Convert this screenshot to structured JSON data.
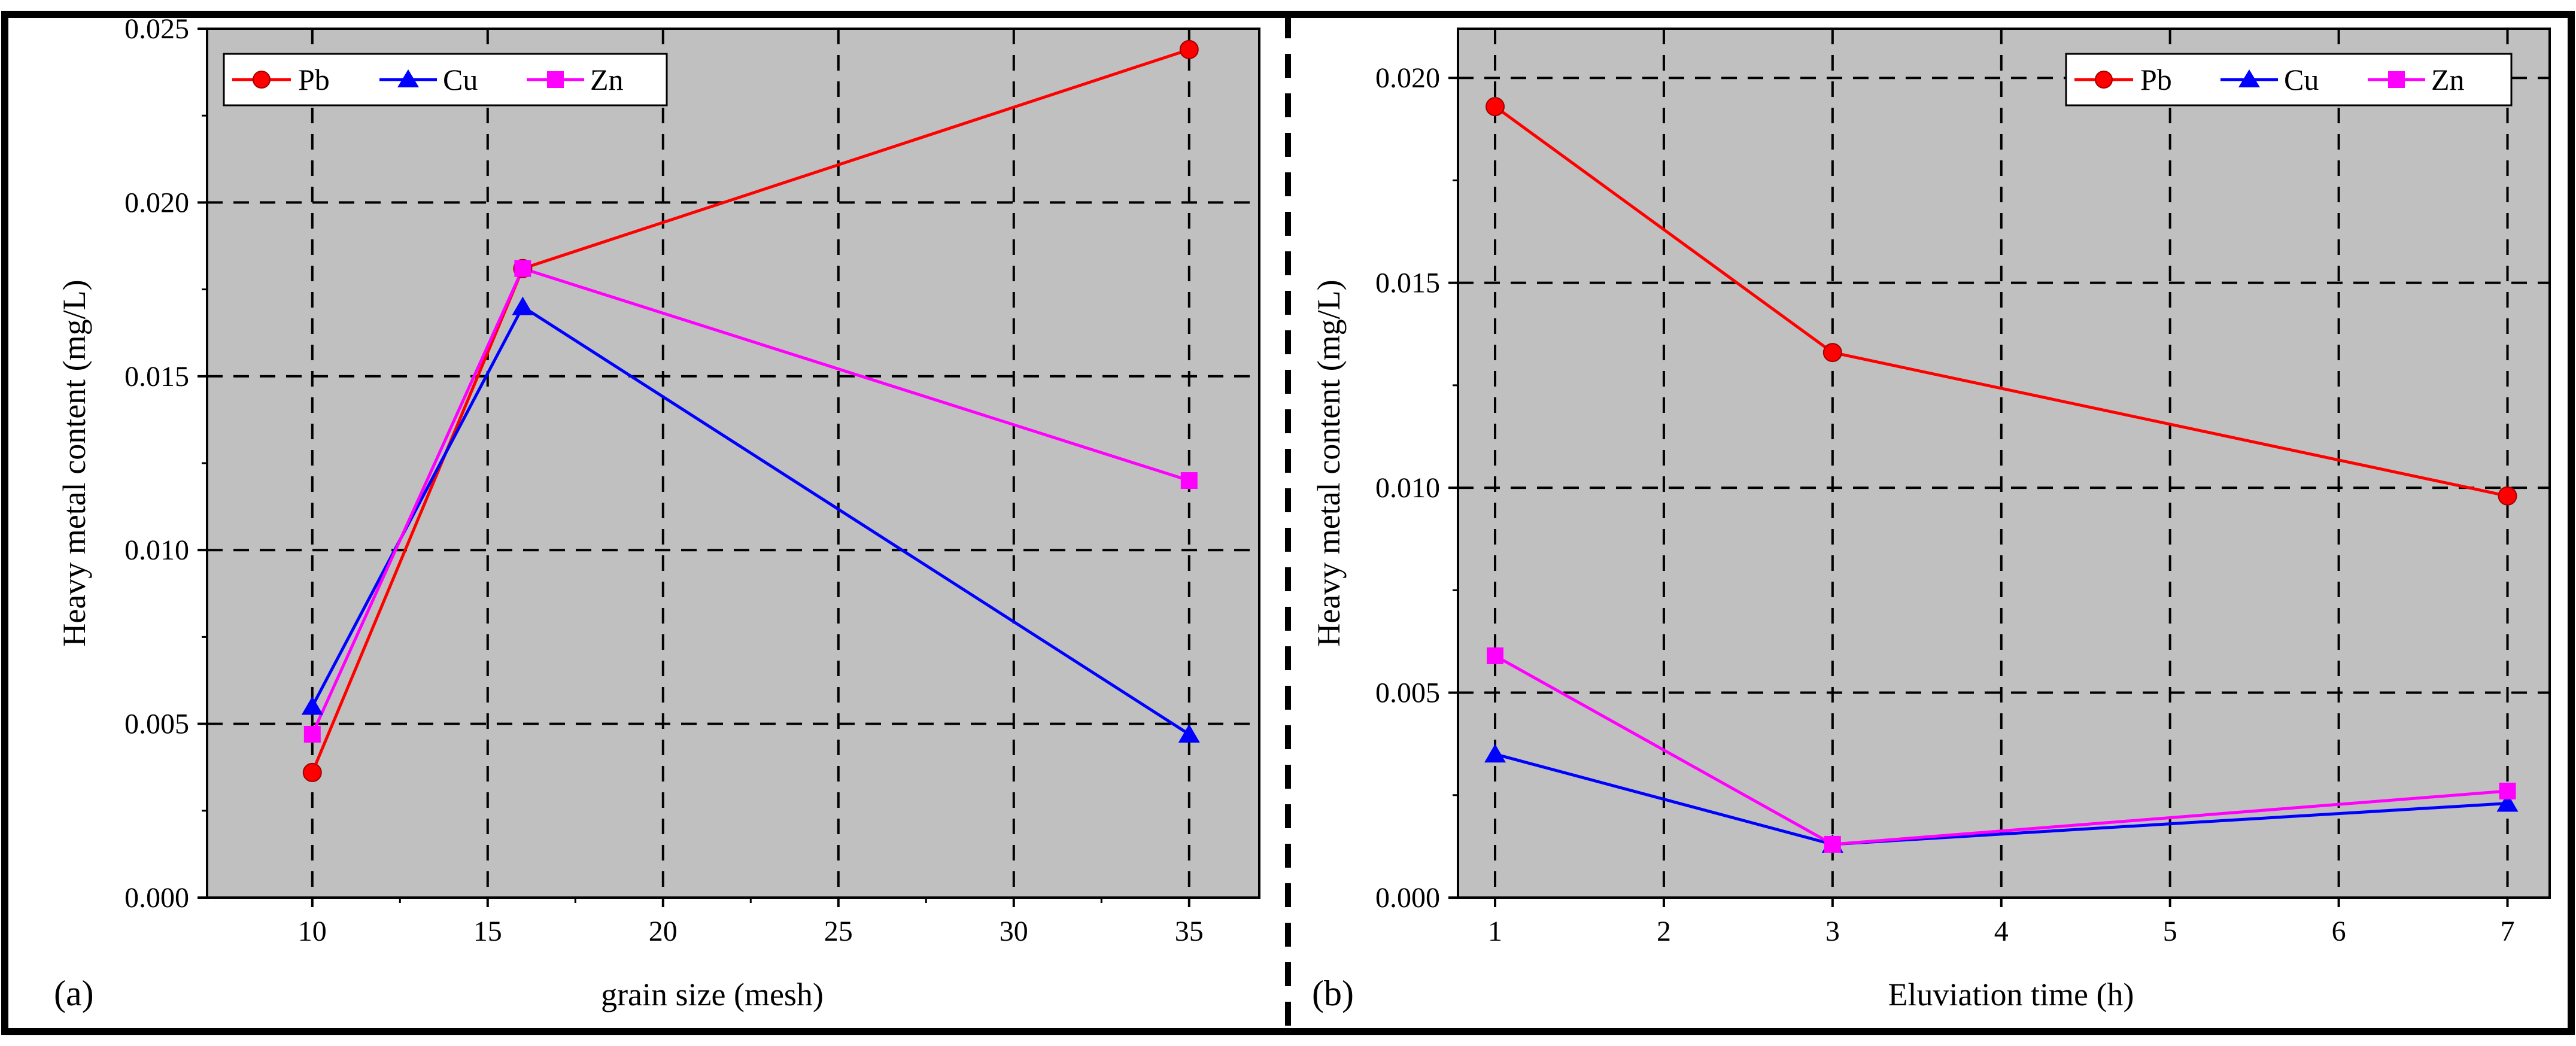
{
  "chart_data": [
    {
      "type": "line",
      "panel_label": "(a)",
      "xlabel": "grain size (mesh)",
      "ylabel": "Heavy metal content (mg/L)",
      "xlim": [
        7,
        37
      ],
      "ylim": [
        0,
        0.025
      ],
      "xticks": [
        10,
        15,
        20,
        25,
        30,
        35
      ],
      "yticks": [
        0.0,
        0.005,
        0.01,
        0.015,
        0.02,
        0.025
      ],
      "ytick_labels": [
        "0.000",
        "0.005",
        "0.010",
        "0.015",
        "0.020",
        "0.025"
      ],
      "grid": true,
      "legend_position": "top-left",
      "x": [
        10,
        16,
        35
      ],
      "series": [
        {
          "name": "Pb",
          "color": "#ff0000",
          "marker": "circle",
          "values": [
            0.0036,
            0.0181,
            0.0244
          ]
        },
        {
          "name": "Cu",
          "color": "#0000ff",
          "marker": "triangle",
          "values": [
            0.0055,
            0.017,
            0.0047
          ]
        },
        {
          "name": "Zn",
          "color": "#ff00ff",
          "marker": "square",
          "values": [
            0.0047,
            0.0181,
            0.012
          ]
        }
      ]
    },
    {
      "type": "line",
      "panel_label": "(b)",
      "xlabel": "Eluviation time (h)",
      "ylabel": "Heavy metal content (mg/L)",
      "xlim": [
        0.78,
        7.25
      ],
      "ylim": [
        0,
        0.0212
      ],
      "xticks": [
        1,
        2,
        3,
        4,
        5,
        6,
        7
      ],
      "yticks": [
        0.0,
        0.005,
        0.01,
        0.015,
        0.02
      ],
      "ytick_labels": [
        "0.000",
        "0.005",
        "0.010",
        "0.015",
        "0.020"
      ],
      "grid": true,
      "legend_position": "top-right",
      "x": [
        1,
        3,
        7
      ],
      "series": [
        {
          "name": "Pb",
          "color": "#ff0000",
          "marker": "circle",
          "values": [
            0.0193,
            0.0133,
            0.0098
          ]
        },
        {
          "name": "Cu",
          "color": "#0000ff",
          "marker": "triangle",
          "values": [
            0.0035,
            0.0013,
            0.0023
          ]
        },
        {
          "name": "Zn",
          "color": "#ff00ff",
          "marker": "square",
          "values": [
            0.0059,
            0.0013,
            0.0026
          ]
        }
      ]
    }
  ],
  "style": {
    "plot_background": "#c0c0c0",
    "grid_color": "#000000",
    "frame_color": "#000000"
  }
}
